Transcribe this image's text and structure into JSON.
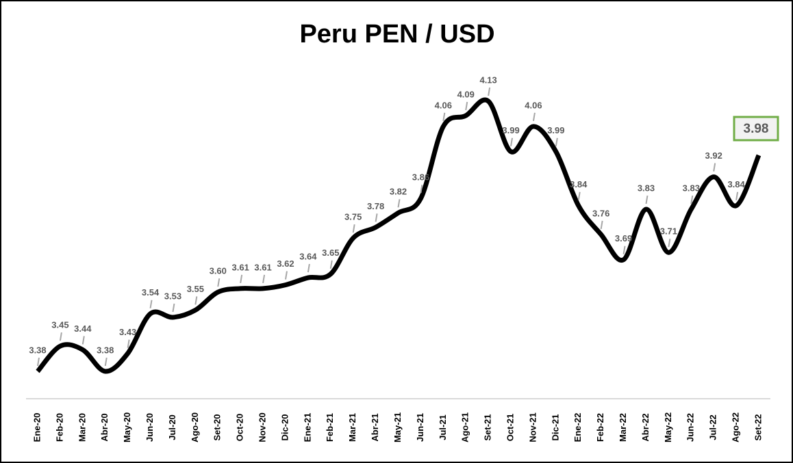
{
  "chart_data": {
    "type": "line",
    "title": "Peru PEN / USD",
    "categories": [
      "Ene-20",
      "Feb-20",
      "Mar-20",
      "Abr-20",
      "May-20",
      "Jun-20",
      "Jul-20",
      "Ago-20",
      "Set-20",
      "Oct-20",
      "Nov-20",
      "Dic-20",
      "Ene-21",
      "Feb-21",
      "Mar-21",
      "Abr-21",
      "May-21",
      "Jun-21",
      "Jul-21",
      "Ago-21",
      "Set-21",
      "Oct-21",
      "Nov-21",
      "Dic-21",
      "Ene-22",
      "Feb-22",
      "Mar-22",
      "Abr-22",
      "May-22",
      "Jun-22",
      "Jul-22",
      "Ago-22",
      "Set-22"
    ],
    "series": [
      {
        "name": "PEN / USD",
        "color": "#000000",
        "values": [
          3.38,
          3.45,
          3.44,
          3.38,
          3.43,
          3.54,
          3.53,
          3.55,
          3.6,
          3.61,
          3.61,
          3.62,
          3.64,
          3.65,
          3.75,
          3.78,
          3.82,
          3.86,
          4.06,
          4.09,
          4.13,
          3.99,
          4.06,
          3.99,
          3.84,
          3.76,
          3.69,
          3.83,
          3.71,
          3.83,
          3.92,
          3.84,
          3.98
        ],
        "value_labels": [
          "3.38",
          "3.45",
          "3.44",
          "3.38",
          "3.43",
          "3.54",
          "3.53",
          "3.55",
          "3.60",
          "3.61",
          "3.61",
          "3.62",
          "3.64",
          "3.65",
          "3.75",
          "3.78",
          "3.82",
          "3.86",
          "4.06",
          "4.09",
          "4.13",
          "3.99",
          "4.06",
          "3.99",
          "3.84",
          "3.76",
          "3.69",
          "3.83",
          "3.71",
          "3.83",
          "3.92",
          "3.84",
          "3.98"
        ]
      }
    ]
  }
}
